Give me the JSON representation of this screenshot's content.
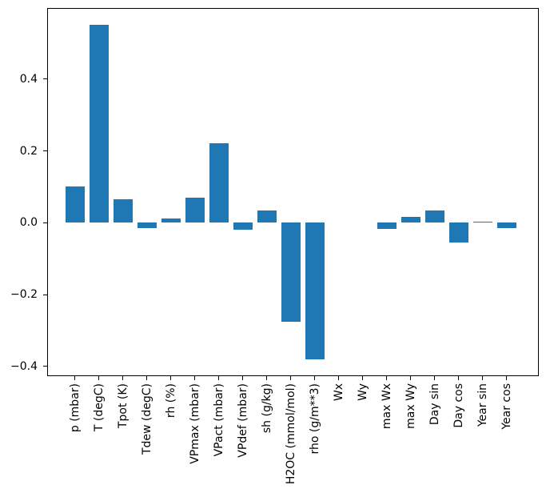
{
  "figure": {
    "background": "#ffffff",
    "spine_color": "#000000",
    "text_color": "#000000"
  },
  "chart_data": {
    "type": "bar",
    "title": "",
    "xlabel": "",
    "ylabel": "",
    "bar_color": "#1f77b4",
    "grid": false,
    "legend": null,
    "x_tick_rotation": 90,
    "ylim": [
      -0.427,
      0.598
    ],
    "yticks": {
      "values": [
        0.4,
        0.2,
        0.0,
        -0.2,
        -0.4
      ],
      "labels": [
        "0.4",
        "0.2",
        "0.0",
        "−0.2",
        "−0.4"
      ]
    },
    "categories": [
      "p (mbar)",
      "T (degC)",
      "Tpot (K)",
      "Tdew (degC)",
      "rh (%)",
      "VPmax (mbar)",
      "VPact (mbar)",
      "VPdef (mbar)",
      "sh (g/kg)",
      "H2OC (mmol/mol)",
      "rho (g/m**3)",
      "Wx",
      "Wy",
      "max Wx",
      "max Wy",
      "Day sin",
      "Day cos",
      "Year sin",
      "Year cos"
    ],
    "values": [
      0.1,
      0.552,
      0.065,
      -0.015,
      0.013,
      0.07,
      0.221,
      -0.02,
      0.034,
      -0.275,
      -0.381,
      0.0,
      0.0,
      -0.016,
      0.017,
      0.034,
      -0.056,
      0.004,
      -0.015
    ]
  }
}
